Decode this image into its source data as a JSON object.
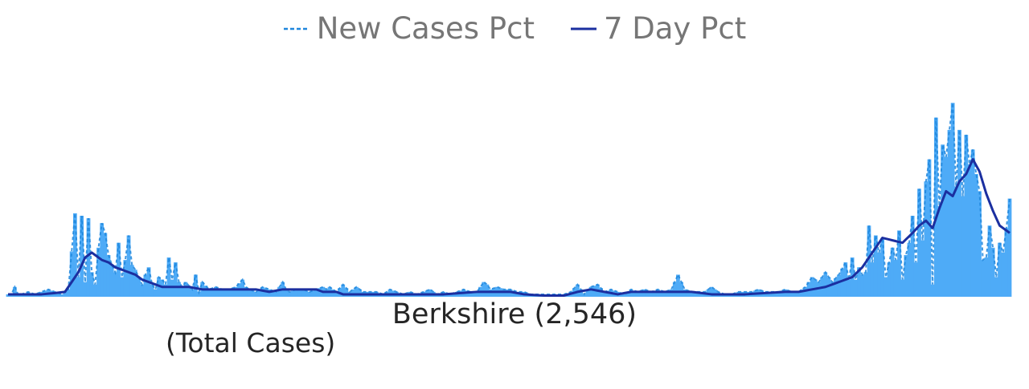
{
  "legend": {
    "new_cases_label": "New Cases Pct",
    "seven_day_label": "7 Day Pct"
  },
  "title": "Berkshire (2,546)",
  "subtitle": "(Total Cases)",
  "colors": {
    "bars": "#4eabf7",
    "bar_dash": "#1f86dc",
    "line": "#1b2fa0",
    "legend_text": "#767676",
    "title_text": "#252525"
  },
  "chart_data": {
    "type": "bar",
    "title": "Berkshire (2,546)",
    "subtitle": "(Total Cases)",
    "grid": false,
    "legend_position": "top-center",
    "ylim": [
      0,
      100
    ],
    "x_count": 300,
    "series": [
      {
        "name": "New Cases Pct",
        "kind": "bar",
        "sparse_points": [
          [
            0,
            1
          ],
          [
            1,
            1
          ],
          [
            2,
            4
          ],
          [
            3,
            1
          ],
          [
            4,
            1
          ],
          [
            6,
            2
          ],
          [
            8,
            1
          ],
          [
            10,
            2
          ],
          [
            12,
            3
          ],
          [
            14,
            2
          ],
          [
            16,
            1
          ],
          [
            18,
            3
          ],
          [
            20,
            34
          ],
          [
            21,
            8
          ],
          [
            22,
            33
          ],
          [
            23,
            6
          ],
          [
            24,
            32
          ],
          [
            25,
            10
          ],
          [
            26,
            5
          ],
          [
            27,
            20
          ],
          [
            28,
            30
          ],
          [
            29,
            26
          ],
          [
            30,
            17
          ],
          [
            31,
            13
          ],
          [
            32,
            10
          ],
          [
            33,
            22
          ],
          [
            34,
            8
          ],
          [
            35,
            15
          ],
          [
            36,
            25
          ],
          [
            37,
            13
          ],
          [
            38,
            11
          ],
          [
            39,
            8
          ],
          [
            40,
            5
          ],
          [
            41,
            9
          ],
          [
            42,
            12
          ],
          [
            43,
            5
          ],
          [
            44,
            3
          ],
          [
            45,
            8
          ],
          [
            46,
            7
          ],
          [
            47,
            5
          ],
          [
            48,
            16
          ],
          [
            49,
            7
          ],
          [
            50,
            14
          ],
          [
            51,
            6
          ],
          [
            52,
            4
          ],
          [
            53,
            6
          ],
          [
            55,
            3
          ],
          [
            56,
            9
          ],
          [
            57,
            2
          ],
          [
            58,
            6
          ],
          [
            60,
            3
          ],
          [
            62,
            4
          ],
          [
            64,
            3
          ],
          [
            66,
            3
          ],
          [
            68,
            4
          ],
          [
            70,
            7
          ],
          [
            71,
            4
          ],
          [
            72,
            3
          ],
          [
            74,
            2
          ],
          [
            76,
            4
          ],
          [
            78,
            3
          ],
          [
            80,
            2
          ],
          [
            82,
            6
          ],
          [
            83,
            3
          ],
          [
            84,
            2
          ],
          [
            86,
            3
          ],
          [
            88,
            3
          ],
          [
            90,
            2
          ],
          [
            92,
            3
          ],
          [
            94,
            4
          ],
          [
            95,
            3
          ],
          [
            96,
            4
          ],
          [
            98,
            2
          ],
          [
            100,
            5
          ],
          [
            102,
            2
          ],
          [
            104,
            4
          ],
          [
            106,
            2
          ],
          [
            108,
            2
          ],
          [
            110,
            2
          ],
          [
            112,
            1
          ],
          [
            114,
            3
          ],
          [
            116,
            2
          ],
          [
            118,
            1
          ],
          [
            120,
            2
          ],
          [
            122,
            1
          ],
          [
            124,
            2
          ],
          [
            126,
            3
          ],
          [
            128,
            1
          ],
          [
            130,
            2
          ],
          [
            132,
            1
          ],
          [
            134,
            2
          ],
          [
            136,
            3
          ],
          [
            138,
            2
          ],
          [
            140,
            2
          ],
          [
            142,
            6
          ],
          [
            143,
            5
          ],
          [
            144,
            3
          ],
          [
            146,
            4
          ],
          [
            148,
            3
          ],
          [
            150,
            3
          ],
          [
            152,
            2
          ],
          [
            154,
            2
          ],
          [
            156,
            1
          ],
          [
            158,
            1
          ],
          [
            160,
            1
          ],
          [
            162,
            1
          ],
          [
            164,
            1
          ],
          [
            166,
            1
          ],
          [
            168,
            2
          ],
          [
            170,
            5
          ],
          [
            172,
            1
          ],
          [
            174,
            4
          ],
          [
            176,
            5
          ],
          [
            178,
            2
          ],
          [
            180,
            3
          ],
          [
            182,
            2
          ],
          [
            184,
            1
          ],
          [
            186,
            3
          ],
          [
            188,
            2
          ],
          [
            190,
            3
          ],
          [
            192,
            2
          ],
          [
            194,
            3
          ],
          [
            196,
            2
          ],
          [
            198,
            3
          ],
          [
            200,
            9
          ],
          [
            202,
            3
          ],
          [
            204,
            2
          ],
          [
            206,
            2
          ],
          [
            208,
            2
          ],
          [
            210,
            4
          ],
          [
            212,
            2
          ],
          [
            214,
            1
          ],
          [
            216,
            1
          ],
          [
            218,
            2
          ],
          [
            220,
            2
          ],
          [
            222,
            2
          ],
          [
            224,
            3
          ],
          [
            226,
            2
          ],
          [
            228,
            2
          ],
          [
            230,
            2
          ],
          [
            232,
            3
          ],
          [
            234,
            2
          ],
          [
            236,
            2
          ],
          [
            238,
            4
          ],
          [
            240,
            8
          ],
          [
            242,
            6
          ],
          [
            244,
            10
          ],
          [
            246,
            6
          ],
          [
            248,
            9
          ],
          [
            250,
            14
          ],
          [
            251,
            7
          ],
          [
            252,
            16
          ],
          [
            253,
            7
          ],
          [
            254,
            12
          ],
          [
            255,
            9
          ],
          [
            256,
            10
          ],
          [
            257,
            29
          ],
          [
            258,
            14
          ],
          [
            259,
            25
          ],
          [
            260,
            18
          ],
          [
            261,
            24
          ],
          [
            262,
            8
          ],
          [
            263,
            14
          ],
          [
            264,
            20
          ],
          [
            265,
            15
          ],
          [
            266,
            27
          ],
          [
            267,
            7
          ],
          [
            268,
            17
          ],
          [
            269,
            22
          ],
          [
            270,
            33
          ],
          [
            271,
            14
          ],
          [
            272,
            44
          ],
          [
            273,
            23
          ],
          [
            274,
            47
          ],
          [
            275,
            56
          ],
          [
            276,
            5
          ],
          [
            277,
            73
          ],
          [
            278,
            37
          ],
          [
            279,
            62
          ],
          [
            280,
            57
          ],
          [
            281,
            68
          ],
          [
            282,
            79
          ],
          [
            283,
            45
          ],
          [
            284,
            68
          ],
          [
            285,
            41
          ],
          [
            286,
            66
          ],
          [
            287,
            54
          ],
          [
            288,
            60
          ],
          [
            289,
            50
          ],
          [
            290,
            43
          ],
          [
            291,
            15
          ],
          [
            292,
            16
          ],
          [
            293,
            29
          ],
          [
            294,
            20
          ],
          [
            295,
            8
          ],
          [
            296,
            22
          ],
          [
            297,
            18
          ],
          [
            298,
            28
          ],
          [
            299,
            40
          ]
        ]
      },
      {
        "name": "7 Day Pct",
        "kind": "line",
        "sparse_points": [
          [
            0,
            1
          ],
          [
            10,
            1
          ],
          [
            14,
            1.5
          ],
          [
            17,
            2
          ],
          [
            19,
            6
          ],
          [
            21,
            10
          ],
          [
            23,
            16
          ],
          [
            25,
            18
          ],
          [
            26,
            17
          ],
          [
            28,
            15
          ],
          [
            30,
            14
          ],
          [
            32,
            12
          ],
          [
            34,
            11
          ],
          [
            36,
            10
          ],
          [
            38,
            9
          ],
          [
            40,
            7
          ],
          [
            42,
            6
          ],
          [
            44,
            5
          ],
          [
            46,
            4
          ],
          [
            48,
            4
          ],
          [
            50,
            4
          ],
          [
            54,
            4
          ],
          [
            58,
            3
          ],
          [
            62,
            3
          ],
          [
            66,
            3
          ],
          [
            70,
            3
          ],
          [
            74,
            3
          ],
          [
            78,
            2
          ],
          [
            82,
            3
          ],
          [
            86,
            3
          ],
          [
            90,
            3
          ],
          [
            92,
            3
          ],
          [
            94,
            2
          ],
          [
            98,
            2
          ],
          [
            100,
            1
          ],
          [
            104,
            1
          ],
          [
            110,
            1
          ],
          [
            120,
            1
          ],
          [
            130,
            1
          ],
          [
            140,
            2
          ],
          [
            144,
            2
          ],
          [
            150,
            2
          ],
          [
            154,
            1
          ],
          [
            160,
            0.5
          ],
          [
            166,
            0.5
          ],
          [
            170,
            2
          ],
          [
            174,
            3
          ],
          [
            178,
            2
          ],
          [
            182,
            1
          ],
          [
            186,
            2
          ],
          [
            190,
            2
          ],
          [
            196,
            2
          ],
          [
            200,
            2
          ],
          [
            204,
            2
          ],
          [
            210,
            1
          ],
          [
            220,
            1
          ],
          [
            232,
            2
          ],
          [
            236,
            2
          ],
          [
            240,
            3
          ],
          [
            244,
            4
          ],
          [
            248,
            6
          ],
          [
            252,
            8
          ],
          [
            255,
            12
          ],
          [
            258,
            18
          ],
          [
            261,
            24
          ],
          [
            264,
            23
          ],
          [
            267,
            22
          ],
          [
            270,
            26
          ],
          [
            272,
            29
          ],
          [
            274,
            31
          ],
          [
            276,
            28
          ],
          [
            278,
            36
          ],
          [
            280,
            43
          ],
          [
            282,
            41
          ],
          [
            284,
            47
          ],
          [
            286,
            50
          ],
          [
            288,
            56
          ],
          [
            290,
            51
          ],
          [
            292,
            42
          ],
          [
            294,
            35
          ],
          [
            296,
            29
          ],
          [
            298,
            27
          ],
          [
            299,
            26
          ]
        ]
      }
    ]
  }
}
